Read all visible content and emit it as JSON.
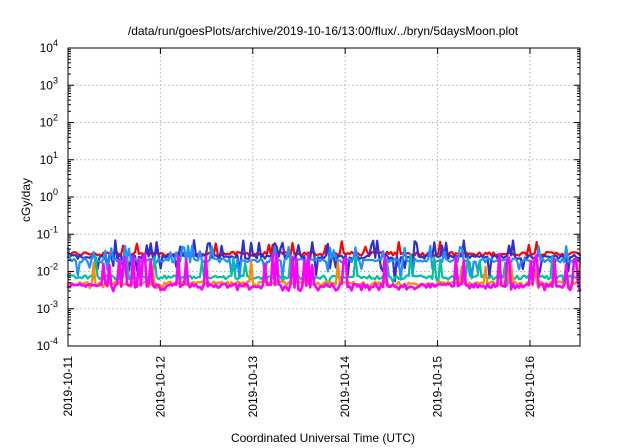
{
  "chart_data": {
    "type": "line",
    "title": "/data/run/goesPlots/archive/2019-10-16/13:00/flux/../bryn/5daysMoon.plot",
    "xlabel": "Coordinated Universal Time (UTC)",
    "ylabel": "cGy/day",
    "yscale": "log",
    "ylim": [
      0.0001,
      10000
    ],
    "xlim": [
      "2019-10-11T00:00",
      "2019-10-16T13:00"
    ],
    "grid": true,
    "x_ticks": [
      "2019-10-11",
      "2019-10-12",
      "2019-10-13",
      "2019-10-14",
      "2019-10-15",
      "2019-10-16"
    ],
    "y_ticks": [
      {
        "base": "10",
        "exp": "-4",
        "value": 0.0001
      },
      {
        "base": "10",
        "exp": "-3",
        "value": 0.001
      },
      {
        "base": "10",
        "exp": "-2",
        "value": 0.01
      },
      {
        "base": "10",
        "exp": "-1",
        "value": 0.1
      },
      {
        "base": "10",
        "exp": "0",
        "value": 1
      },
      {
        "base": "10",
        "exp": "1",
        "value": 10
      },
      {
        "base": "10",
        "exp": "2",
        "value": 100
      },
      {
        "base": "10",
        "exp": "3",
        "value": 1000
      },
      {
        "base": "10",
        "exp": "4",
        "value": 10000
      }
    ],
    "series": [
      {
        "color": "#ff0000",
        "baseline": 0.03,
        "spike_max": 0.065,
        "dip_min": 0.025
      },
      {
        "color": "#2f2fcf",
        "baseline": 0.025,
        "spike_max": 0.07,
        "dip_min": 0.004
      },
      {
        "color": "#1e90ff",
        "baseline": 0.02,
        "spike_max": 0.05,
        "dip_min": 0.006
      },
      {
        "color": "#00c0a0",
        "baseline": 0.007,
        "spike_max": 0.03,
        "dip_min": 0.004
      },
      {
        "color": "#ff8c00",
        "baseline": 0.0048,
        "spike_max": 0.02,
        "dip_min": 0.0035
      },
      {
        "color": "#ff00ff",
        "baseline": 0.0042,
        "spike_max": 0.03,
        "dip_min": 0.003
      }
    ]
  }
}
